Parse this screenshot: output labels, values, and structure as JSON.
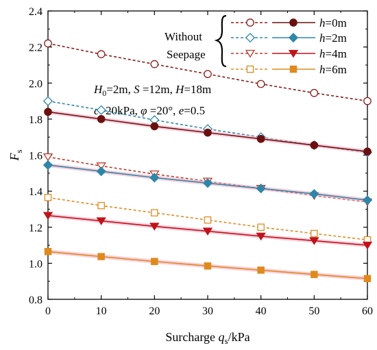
{
  "chart_data": {
    "type": "line",
    "x": [
      0,
      10,
      20,
      30,
      40,
      50,
      60
    ],
    "xlabel_main": "Surcharge ",
    "xlabel_var": "q",
    "xlabel_sub": "s",
    "xlabel_unit": "/kPa",
    "ylabel_var": "F",
    "ylabel_sub": "s",
    "xlim": [
      0,
      60
    ],
    "ylim": [
      0.8,
      2.4
    ],
    "xticks": [
      0,
      10,
      20,
      30,
      40,
      50,
      60
    ],
    "yticks": [
      0.8,
      1.0,
      1.2,
      1.4,
      1.6,
      1.8,
      2.0,
      2.2,
      2.4
    ],
    "ytick_labels": [
      "0.8",
      "1.0",
      "1.2",
      "1.4",
      "1.6",
      "1.8",
      "2.0",
      "2.2",
      "2.4"
    ],
    "grid": false,
    "legend_position": "top-right",
    "legend_group_label_1": "Without",
    "legend_group_label_2": "Seepage",
    "annotation_line1": "H0=2m, S=12m, H=18m",
    "annotation_line2": "c=20kPa, φ=20°, e=0.5",
    "series": [
      {
        "name": "h=0m",
        "h_value": "0m",
        "seepage": false,
        "color": "#8b1a1a",
        "marker": "circle-open",
        "dashed": true,
        "values": [
          2.22,
          2.16,
          2.105,
          2.05,
          1.995,
          1.945,
          1.9
        ]
      },
      {
        "name": "h=2m",
        "h_value": "2m",
        "seepage": false,
        "color": "#2e86a8",
        "marker": "diamond-open",
        "dashed": true,
        "values": [
          1.9,
          1.85,
          1.795,
          1.745,
          1.7,
          1.655,
          1.615
        ]
      },
      {
        "name": "h=4m",
        "h_value": "4m",
        "seepage": false,
        "color": "#c0392b",
        "marker": "triangle-open",
        "dashed": true,
        "values": [
          1.59,
          1.54,
          1.495,
          1.455,
          1.415,
          1.375,
          1.34
        ]
      },
      {
        "name": "h=6m",
        "h_value": "6m",
        "seepage": false,
        "color": "#e08a1e",
        "marker": "square-open",
        "dashed": true,
        "values": [
          1.365,
          1.32,
          1.28,
          1.24,
          1.2,
          1.165,
          1.13
        ]
      },
      {
        "name": "h=0m",
        "h_value": "0m",
        "seepage": true,
        "color": "#6b1010",
        "marker": "circle-filled",
        "dashed": false,
        "values": [
          1.84,
          1.8,
          1.76,
          1.725,
          1.69,
          1.655,
          1.62
        ]
      },
      {
        "name": "h=2m",
        "h_value": "2m",
        "seepage": true,
        "color": "#2e86a8",
        "marker": "diamond-filled",
        "dashed": false,
        "values": [
          1.545,
          1.51,
          1.475,
          1.445,
          1.415,
          1.385,
          1.35
        ]
      },
      {
        "name": "h=4m",
        "h_value": "4m",
        "seepage": true,
        "color": "#c0121a",
        "marker": "triangle-filled",
        "dashed": false,
        "values": [
          1.265,
          1.235,
          1.205,
          1.178,
          1.15,
          1.125,
          1.1
        ]
      },
      {
        "name": "h=6m",
        "h_value": "6m",
        "seepage": true,
        "color": "#e08a1e",
        "marker": "square-filled",
        "dashed": false,
        "values": [
          1.065,
          1.037,
          1.01,
          0.985,
          0.962,
          0.938,
          0.915
        ]
      }
    ]
  }
}
